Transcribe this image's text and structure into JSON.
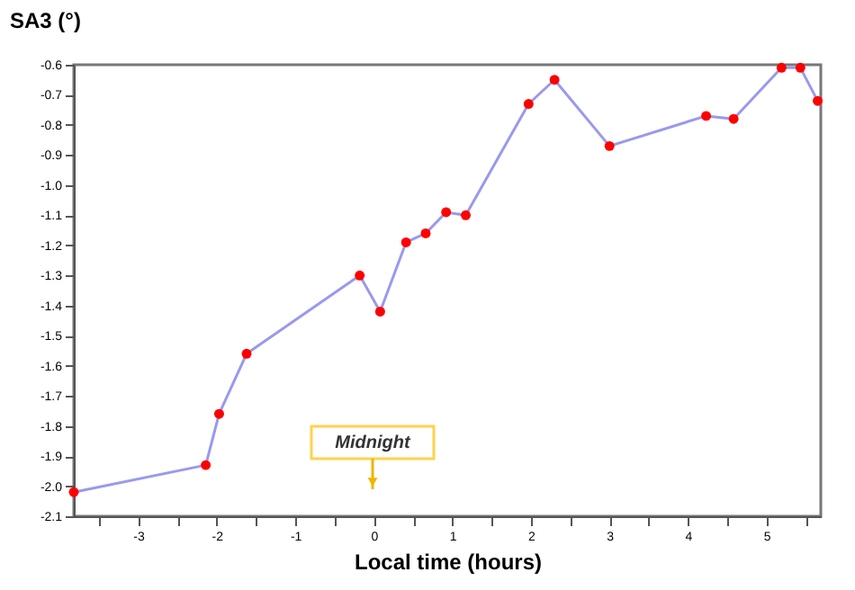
{
  "chart_data": {
    "type": "line",
    "ylabel": "SA3 (°)",
    "xlabel": "Local time (hours)",
    "x": [
      -3.82,
      -2.14,
      -1.97,
      -1.62,
      -0.18,
      0.08,
      0.41,
      0.66,
      0.92,
      1.17,
      1.97,
      2.3,
      3.0,
      4.23,
      4.58,
      5.19,
      5.43,
      5.65
    ],
    "series": [
      {
        "color": "#9999ee",
        "values": [
          -2.02,
          -1.93,
          -1.76,
          -1.56,
          -1.3,
          -1.42,
          -1.19,
          -1.16,
          -1.09,
          -1.1,
          -0.73,
          -0.65,
          -0.87,
          -0.77,
          -0.78,
          -0.61,
          -0.61,
          -0.72
        ]
      },
      {
        "type": "scatter",
        "marker": "circle",
        "color": "#ff0000",
        "values": [
          -2.02,
          -1.93,
          -1.76,
          -1.56,
          -1.3,
          -1.42,
          -1.19,
          -1.16,
          -1.09,
          -1.1,
          -0.73,
          -0.65,
          -0.87,
          -0.77,
          -0.78,
          -0.61,
          -0.61,
          -0.72
        ]
      }
    ],
    "xlim": [
      -3.82,
      5.69
    ],
    "ylim": [
      -2.1,
      -0.6
    ],
    "xticks": [
      {
        "value": -3.5,
        "label": null
      },
      -3,
      {
        "value": -2.5,
        "label": null
      },
      -2,
      {
        "value": -1.5,
        "label": null
      },
      -1,
      {
        "value": -0.5,
        "label": null
      },
      0,
      {
        "value": 0.5,
        "label": null
      },
      1,
      {
        "value": 1.5,
        "label": null
      },
      2,
      {
        "value": 2.5,
        "label": null
      },
      3,
      {
        "value": 3.5,
        "label": null
      },
      4,
      {
        "value": 4.5,
        "label": null
      },
      5,
      {
        "value": 5.5,
        "label": null
      }
    ],
    "yticks": [
      -2.1,
      {
        "value": -2,
        "label": "-2.0"
      },
      -1.9,
      -1.8,
      -1.7,
      -1.6,
      -1.5,
      -1.4,
      -1.3,
      -1.2,
      -1.1,
      {
        "value": -1,
        "label": "-1.0"
      },
      -0.9,
      -0.8,
      -0.7,
      -0.6
    ],
    "annotations": [
      "Midnight"
    ],
    "line_style": "solid",
    "grid": false
  }
}
